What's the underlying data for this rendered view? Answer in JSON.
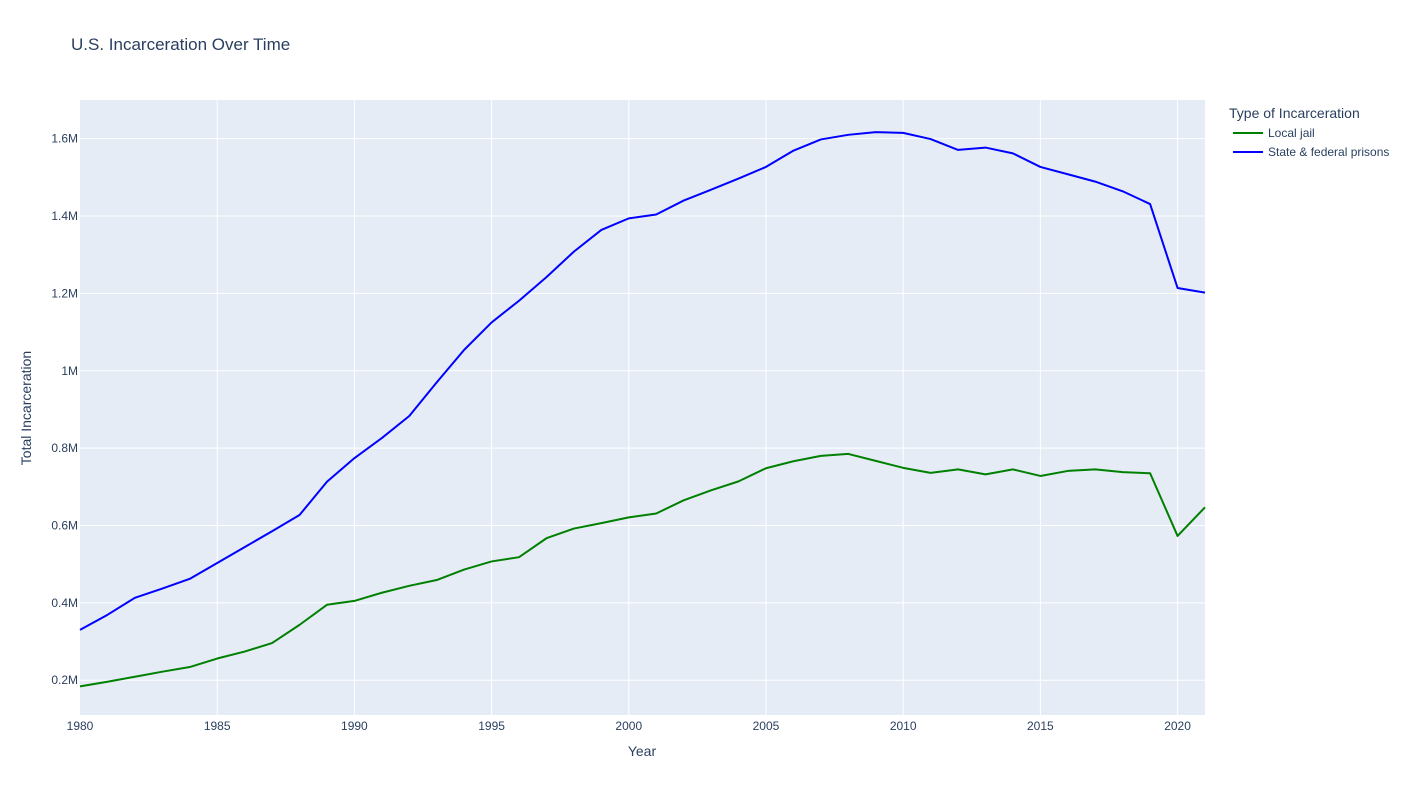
{
  "chart_data": {
    "type": "line",
    "title": "U.S. Incarceration Over Time",
    "xlabel": "Year",
    "ylabel": "Total Incarceration",
    "legend_title": "Type of Incarceration",
    "legend_position": "right",
    "grid": true,
    "xlim": [
      1980,
      2021
    ],
    "ylim": [
      110000,
      1700000
    ],
    "x_ticks": [
      1980,
      1985,
      1990,
      1995,
      2000,
      2005,
      2010,
      2015,
      2020
    ],
    "x_tick_labels": [
      "1980",
      "1985",
      "1990",
      "1995",
      "2000",
      "2005",
      "2010",
      "2015",
      "2020"
    ],
    "y_ticks": [
      200000,
      400000,
      600000,
      800000,
      1000000,
      1200000,
      1400000,
      1600000
    ],
    "y_tick_labels": [
      "0.2M",
      "0.4M",
      "0.6M",
      "0.8M",
      "1M",
      "1.2M",
      "1.4M",
      "1.6M"
    ],
    "x": [
      1980,
      1981,
      1982,
      1983,
      1984,
      1985,
      1986,
      1987,
      1988,
      1989,
      1990,
      1991,
      1992,
      1993,
      1994,
      1995,
      1996,
      1997,
      1998,
      1999,
      2000,
      2001,
      2002,
      2003,
      2004,
      2005,
      2006,
      2007,
      2008,
      2009,
      2010,
      2011,
      2012,
      2013,
      2014,
      2015,
      2016,
      2017,
      2018,
      2019,
      2020,
      2021
    ],
    "series": [
      {
        "name": "Local jail",
        "color": "#008000",
        "values": [
          184000,
          196000,
          209000,
          222000,
          234000,
          256000,
          274000,
          296000,
          343000,
          395000,
          405000,
          426000,
          444000,
          459000,
          486000,
          507000,
          518000,
          567000,
          592000,
          606000,
          621000,
          631000,
          665000,
          691000,
          714000,
          748000,
          766000,
          780000,
          785000,
          767000,
          749000,
          736000,
          745000,
          732000,
          745000,
          728000,
          741000,
          745000,
          738000,
          735000,
          573000,
          647000
        ]
      },
      {
        "name": "State & federal prisons",
        "color": "#0000ff",
        "values": [
          330000,
          369000,
          413000,
          437000,
          462000,
          503000,
          544000,
          585000,
          627000,
          713000,
          774000,
          826000,
          883000,
          970000,
          1054000,
          1125000,
          1181000,
          1242000,
          1308000,
          1364000,
          1394000,
          1404000,
          1440000,
          1468000,
          1497000,
          1527000,
          1569000,
          1598000,
          1610000,
          1617000,
          1615000,
          1599000,
          1571000,
          1577000,
          1562000,
          1527000,
          1508000,
          1489000,
          1464000,
          1431000,
          1214000,
          1202000
        ]
      }
    ]
  }
}
